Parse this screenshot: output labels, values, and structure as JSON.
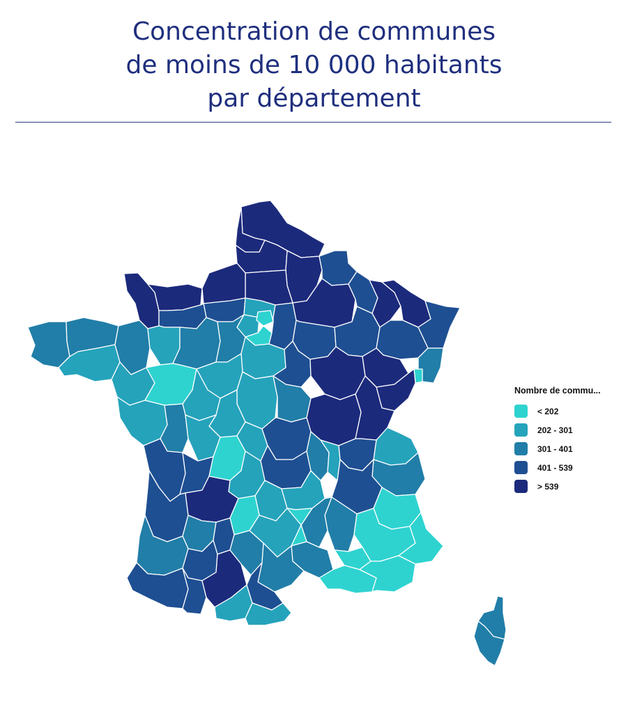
{
  "title": {
    "line1": "Concentration de communes",
    "line2": "de moins de 10 000 habitants",
    "line3": "par département"
  },
  "legend": {
    "title": "Nombre de commu...",
    "classes": [
      {
        "label": "< 202",
        "color": "#2ed3d0"
      },
      {
        "label": "202 - 301",
        "color": "#25a3bb"
      },
      {
        "label": "301 - 401",
        "color": "#217ea8"
      },
      {
        "label": "401 - 539",
        "color": "#1e4f92"
      },
      {
        "label": "> 539",
        "color": "#1c2a7c"
      }
    ]
  },
  "colors": {
    "title": "#1f2f7e",
    "rule": "#2b3a87",
    "borders": "#ffffff"
  }
}
